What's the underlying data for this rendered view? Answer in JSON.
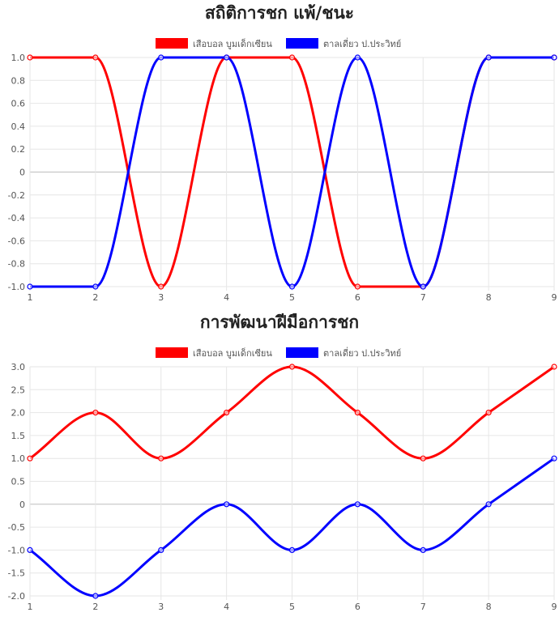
{
  "chart_data": [
    {
      "type": "line",
      "title": "สถิติการชก แพ้/ชนะ",
      "categories": [
        "1",
        "2",
        "3",
        "4",
        "5",
        "6",
        "7",
        "8",
        "9"
      ],
      "ylim": [
        -1.0,
        1.0
      ],
      "y_ticks": [
        "1.0",
        "0.8",
        "0.6",
        "0.4",
        "0.2",
        "0",
        "-0.2",
        "-0.4",
        "-0.6",
        "-0.8",
        "-1.0"
      ],
      "grid": true,
      "legend_position": "top",
      "series": [
        {
          "name": "เสือบอล บูมเด็กเซียน",
          "color": "#ff0000",
          "values": [
            1,
            1,
            -1,
            1,
            1,
            -1,
            -1,
            1,
            1
          ]
        },
        {
          "name": "ตาลเดี่ยว ป.ประวิทย์",
          "color": "#0000ff",
          "values": [
            -1,
            -1,
            1,
            1,
            -1,
            1,
            -1,
            1,
            1
          ]
        }
      ]
    },
    {
      "type": "line",
      "title": "การพัฒนาฝีมือการชก",
      "categories": [
        "1",
        "2",
        "3",
        "4",
        "5",
        "6",
        "7",
        "8",
        "9"
      ],
      "ylim": [
        -2.0,
        3.0
      ],
      "y_ticks": [
        "3.0",
        "2.5",
        "2.0",
        "1.5",
        "1.0",
        "0.5",
        "0",
        "-0.5",
        "-1.0",
        "-1.5",
        "-2.0"
      ],
      "grid": true,
      "legend_position": "top",
      "series": [
        {
          "name": "เสือบอล บูมเด็กเซียน",
          "color": "#ff0000",
          "values": [
            1,
            2,
            1,
            2,
            3,
            2,
            1,
            2,
            3
          ]
        },
        {
          "name": "ตาลเดี่ยว ป.ประวิทย์",
          "color": "#0000ff",
          "values": [
            -1,
            -2,
            -1,
            0,
            -1,
            0,
            -1,
            0,
            1
          ]
        }
      ]
    }
  ]
}
